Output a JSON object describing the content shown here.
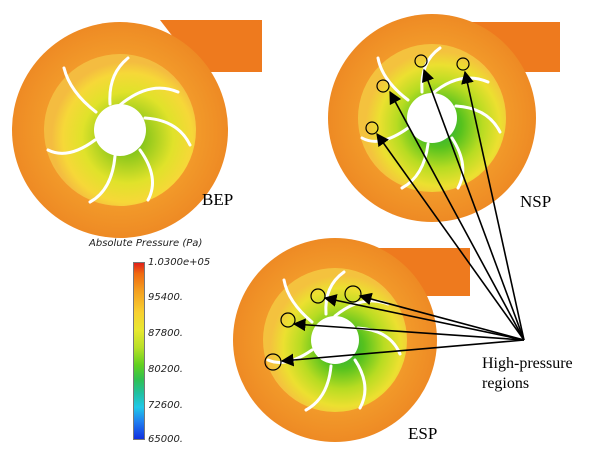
{
  "panels": [
    {
      "label": "BEP"
    },
    {
      "label": "NSP"
    },
    {
      "label": "ESP"
    }
  ],
  "colorbar": {
    "title": "Absolute Pressure (Pa)",
    "ticks": [
      "1.0300e+05",
      "95400.",
      "87800.",
      "80200.",
      "72600.",
      "65000."
    ],
    "colors": [
      "#e0201a",
      "#f6a521",
      "#e8e830",
      "#30c050",
      "#20c8e8",
      "#1030e0"
    ]
  },
  "annotation": {
    "line1": "High-pressure",
    "line2": "regions"
  }
}
